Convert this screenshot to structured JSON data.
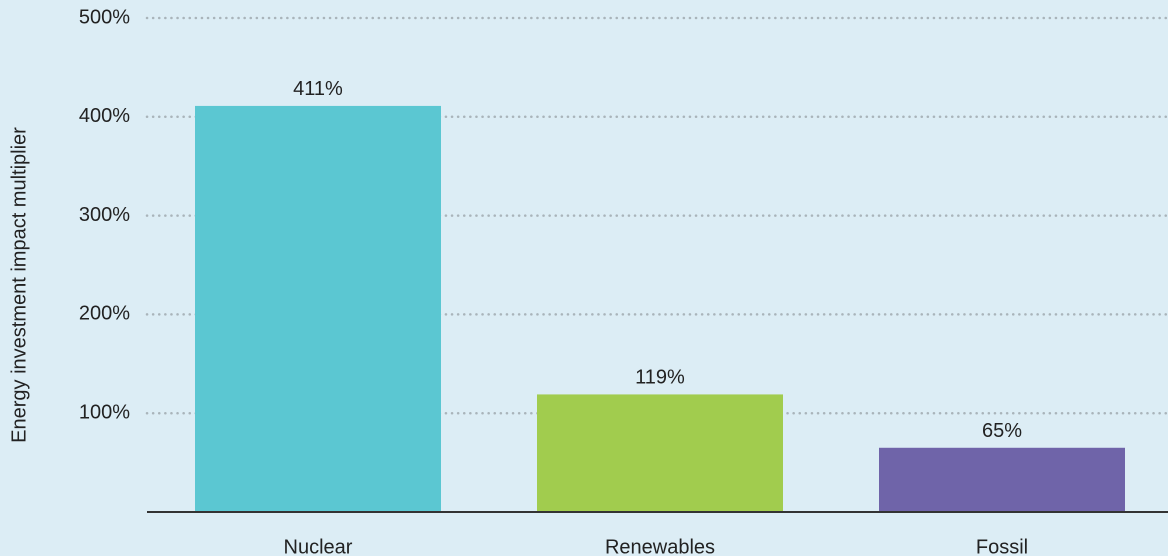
{
  "chart_data": {
    "type": "bar",
    "y_label": "Energy investment impact multiplier",
    "categories": [
      "Nuclear",
      "Renewables",
      "Fossil"
    ],
    "values": [
      411,
      119,
      65
    ],
    "value_labels": [
      "411%",
      "119%",
      "65%"
    ],
    "colors": [
      "#5bc7d2",
      "#a1cc4e",
      "#6f64a9"
    ],
    "ylim": [
      0,
      500
    ],
    "yticks": [
      {
        "value": 100,
        "label": "100%"
      },
      {
        "value": 200,
        "label": "200%"
      },
      {
        "value": 300,
        "label": "300%"
      },
      {
        "value": 400,
        "label": "400%"
      },
      {
        "value": 500,
        "label": "500%"
      }
    ],
    "grid": true
  }
}
